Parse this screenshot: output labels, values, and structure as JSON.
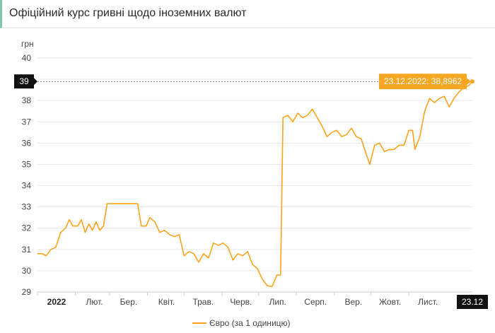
{
  "header": {
    "title": "Офіційний курс гривні щодо іноземних валют"
  },
  "colors": {
    "series": "#ffa31a",
    "accent_header": "#7ec9a7",
    "grid": "#e6e6e6",
    "marker_bg": "#111111",
    "tooltip_bg": "#f5a623"
  },
  "chart_data": {
    "type": "line",
    "ylabel": "грн",
    "ylim": [
      29,
      40
    ],
    "y_ticks": [
      "29",
      "30",
      "31",
      "32",
      "33",
      "34",
      "35",
      "36",
      "37",
      "38",
      "39",
      "40"
    ],
    "x_tick_labels": [
      "2022",
      "Лют.",
      "Бер.",
      "Квіт.",
      "Трав.",
      "Черв.",
      "Лип.",
      "Серп.",
      "Вер.",
      "Жовт.",
      "Лист."
    ],
    "x_ticks": [
      {
        "label": "2022",
        "day": 0,
        "bold": true
      },
      {
        "label": "Лют.",
        "day": 31
      },
      {
        "label": "Бер.",
        "day": 59
      },
      {
        "label": "Квіт.",
        "day": 90
      },
      {
        "label": "Трав.",
        "day": 120
      },
      {
        "label": "Черв.",
        "day": 151
      },
      {
        "label": "Лип.",
        "day": 181
      },
      {
        "label": "Серп.",
        "day": 212
      },
      {
        "label": "Вер.",
        "day": 243
      },
      {
        "label": "Жовт.",
        "day": 273
      },
      {
        "label": "Лист.",
        "day": 304
      }
    ],
    "x_marker_label": "23.12",
    "y_marker_label": "39",
    "tooltip": "23.12.2022: 38,8962",
    "grid": true,
    "legend": "bottom-center",
    "series": [
      {
        "name": "Євро (за 1 одиницю)",
        "points": [
          [
            "2022-01-01",
            30.8
          ],
          [
            "2022-01-05",
            30.8
          ],
          [
            "2022-01-08",
            30.7
          ],
          [
            "2022-01-12",
            31.0
          ],
          [
            "2022-01-16",
            31.1
          ],
          [
            "2022-01-20",
            31.8
          ],
          [
            "2022-01-24",
            32.0
          ],
          [
            "2022-01-27",
            32.4
          ],
          [
            "2022-01-30",
            32.1
          ],
          [
            "2022-02-03",
            32.1
          ],
          [
            "2022-02-06",
            32.4
          ],
          [
            "2022-02-09",
            31.8
          ],
          [
            "2022-02-12",
            32.2
          ],
          [
            "2022-02-15",
            31.9
          ],
          [
            "2022-02-18",
            32.3
          ],
          [
            "2022-02-21",
            31.9
          ],
          [
            "2022-02-24",
            32.1
          ],
          [
            "2022-02-27",
            33.15
          ],
          [
            "2022-03-10",
            33.15
          ],
          [
            "2022-03-20",
            33.15
          ],
          [
            "2022-03-24",
            33.15
          ],
          [
            "2022-03-27",
            32.1
          ],
          [
            "2022-03-31",
            32.1
          ],
          [
            "2022-04-03",
            32.5
          ],
          [
            "2022-04-07",
            32.3
          ],
          [
            "2022-04-11",
            31.8
          ],
          [
            "2022-04-15",
            31.9
          ],
          [
            "2022-04-19",
            31.7
          ],
          [
            "2022-04-23",
            31.6
          ],
          [
            "2022-04-27",
            31.7
          ],
          [
            "2022-05-01",
            30.7
          ],
          [
            "2022-05-05",
            30.9
          ],
          [
            "2022-05-09",
            30.8
          ],
          [
            "2022-05-13",
            30.4
          ],
          [
            "2022-05-17",
            30.8
          ],
          [
            "2022-05-21",
            30.6
          ],
          [
            "2022-05-25",
            31.3
          ],
          [
            "2022-05-29",
            31.2
          ],
          [
            "2022-06-02",
            31.3
          ],
          [
            "2022-06-06",
            31.1
          ],
          [
            "2022-06-10",
            30.5
          ],
          [
            "2022-06-14",
            30.8
          ],
          [
            "2022-06-18",
            30.7
          ],
          [
            "2022-06-22",
            30.9
          ],
          [
            "2022-06-26",
            30.3
          ],
          [
            "2022-06-30",
            30.1
          ],
          [
            "2022-07-04",
            29.6
          ],
          [
            "2022-07-08",
            29.3
          ],
          [
            "2022-07-12",
            29.25
          ],
          [
            "2022-07-16",
            29.8
          ],
          [
            "2022-07-19",
            29.8
          ],
          [
            "2022-07-21",
            37.2
          ],
          [
            "2022-07-25",
            37.3
          ],
          [
            "2022-07-29",
            37.0
          ],
          [
            "2022-08-02",
            37.4
          ],
          [
            "2022-08-06",
            37.2
          ],
          [
            "2022-08-10",
            37.3
          ],
          [
            "2022-08-14",
            37.6
          ],
          [
            "2022-08-18",
            37.2
          ],
          [
            "2022-08-22",
            36.8
          ],
          [
            "2022-08-26",
            36.3
          ],
          [
            "2022-08-30",
            36.5
          ],
          [
            "2022-09-03",
            36.6
          ],
          [
            "2022-09-07",
            36.3
          ],
          [
            "2022-09-11",
            36.4
          ],
          [
            "2022-09-15",
            36.7
          ],
          [
            "2022-09-19",
            36.3
          ],
          [
            "2022-09-23",
            36.2
          ],
          [
            "2022-09-27",
            35.5
          ],
          [
            "2022-09-30",
            35.0
          ],
          [
            "2022-10-04",
            35.9
          ],
          [
            "2022-10-08",
            36.0
          ],
          [
            "2022-10-12",
            35.6
          ],
          [
            "2022-10-16",
            35.7
          ],
          [
            "2022-10-20",
            35.7
          ],
          [
            "2022-10-24",
            35.9
          ],
          [
            "2022-10-28",
            35.9
          ],
          [
            "2022-11-01",
            36.6
          ],
          [
            "2022-11-04",
            36.6
          ],
          [
            "2022-11-06",
            35.7
          ],
          [
            "2022-11-10",
            36.3
          ],
          [
            "2022-11-14",
            37.5
          ],
          [
            "2022-11-18",
            38.1
          ],
          [
            "2022-11-22",
            37.9
          ],
          [
            "2022-11-26",
            38.1
          ],
          [
            "2022-11-30",
            38.2
          ],
          [
            "2022-12-04",
            37.7
          ],
          [
            "2022-12-08",
            38.1
          ],
          [
            "2022-12-12",
            38.4
          ],
          [
            "2022-12-16",
            38.6
          ],
          [
            "2022-12-20",
            38.7
          ],
          [
            "2022-12-23",
            38.8962
          ]
        ]
      }
    ]
  }
}
